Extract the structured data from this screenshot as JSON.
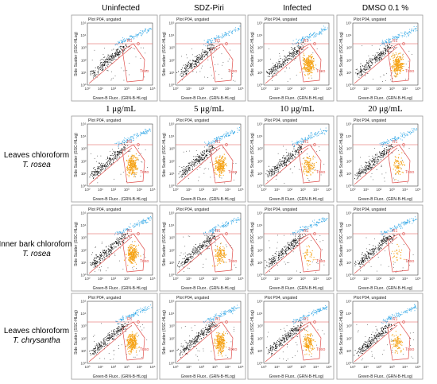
{
  "top_headers": [
    "Uninfected",
    "SDZ-Piri",
    "Infected",
    "DMSO 0.1 %"
  ],
  "conc_headers": [
    "1 μg/mL",
    "5 μg/mL",
    "10 μg/mL",
    "20 μg/mL"
  ],
  "row_labels": [
    {
      "extract": "Leaves chloroform",
      "species": "T. rosea"
    },
    {
      "extract": "Inner bark chloroform",
      "species": "T. rosea"
    },
    {
      "extract": "Leaves chloroform",
      "species": "T. chrysantha"
    }
  ],
  "plot_text": {
    "title": "Plot P04, ungated",
    "xlabel": "Green-B Fluor.. (GRN-B-HLog)",
    "ylabel": "Side Scatter (SSC-HLog)",
    "gate_r1": "R1",
    "gate_toxo": "Toxo",
    "ticks": [
      "10⁰",
      "10¹",
      "10²",
      "10³",
      "10⁴",
      "10⁵"
    ]
  },
  "colors": {
    "cells": "#111111",
    "r1_events": "#2fa6e6",
    "toxo_events": "#f5a316",
    "gate_line": "#e0504d"
  },
  "chart_data": [
    {
      "type": "scatter",
      "panel": "Uninfected",
      "axes": "log-log",
      "xlim": [
        1,
        100000
      ],
      "ylim": [
        1,
        100000
      ],
      "gates": [
        "R1",
        "Toxo"
      ],
      "toxo_density": 0.0
    },
    {
      "type": "scatter",
      "panel": "SDZ-Piri",
      "axes": "log-log",
      "xlim": [
        1,
        100000
      ],
      "ylim": [
        1,
        100000
      ],
      "gates": [
        "R1",
        "Toxo"
      ],
      "toxo_density": 0.0
    },
    {
      "type": "scatter",
      "panel": "Infected",
      "axes": "log-log",
      "xlim": [
        1,
        100000
      ],
      "ylim": [
        1,
        100000
      ],
      "gates": [
        "R1",
        "Toxo"
      ],
      "toxo_density": 1.0
    },
    {
      "type": "scatter",
      "panel": "DMSO 0.1 %",
      "axes": "log-log",
      "xlim": [
        1,
        100000
      ],
      "ylim": [
        1,
        100000
      ],
      "gates": [
        "R1",
        "Toxo"
      ],
      "toxo_density": 1.0
    },
    {
      "type": "scatter",
      "panel": "Leaves chloroform T. rosea, 1 μg/mL",
      "axes": "log-log",
      "xlim": [
        1,
        100000
      ],
      "ylim": [
        1,
        100000
      ],
      "gates": [
        "R1",
        "Toxo"
      ],
      "toxo_density": 0.85
    },
    {
      "type": "scatter",
      "panel": "Leaves chloroform T. rosea, 5 μg/mL",
      "axes": "log-log",
      "xlim": [
        1,
        100000
      ],
      "ylim": [
        1,
        100000
      ],
      "gates": [
        "R1",
        "Toxo"
      ],
      "toxo_density": 0.8
    },
    {
      "type": "scatter",
      "panel": "Leaves chloroform T. rosea, 10 μg/mL",
      "axes": "log-log",
      "xlim": [
        1,
        100000
      ],
      "ylim": [
        1,
        100000
      ],
      "gates": [
        "R1",
        "Toxo"
      ],
      "toxo_density": 0.45
    },
    {
      "type": "scatter",
      "panel": "Leaves chloroform T. rosea, 20 μg/mL",
      "axes": "log-log",
      "xlim": [
        1,
        100000
      ],
      "ylim": [
        1,
        100000
      ],
      "gates": [
        "R1",
        "Toxo"
      ],
      "toxo_density": 0.3
    },
    {
      "type": "scatter",
      "panel": "Inner bark chloroform T. rosea, 1 μg/mL",
      "axes": "log-log",
      "xlim": [
        1,
        100000
      ],
      "ylim": [
        1,
        100000
      ],
      "gates": [
        "R1",
        "Toxo"
      ],
      "toxo_density": 0.9
    },
    {
      "type": "scatter",
      "panel": "Inner bark chloroform T. rosea, 5 μg/mL",
      "axes": "log-log",
      "xlim": [
        1,
        100000
      ],
      "ylim": [
        1,
        100000
      ],
      "gates": [
        "R1",
        "Toxo"
      ],
      "toxo_density": 0.5
    },
    {
      "type": "scatter",
      "panel": "Inner bark chloroform T. rosea, 10 μg/mL",
      "axes": "log-log",
      "xlim": [
        1,
        100000
      ],
      "ylim": [
        1,
        100000
      ],
      "gates": [
        "R1",
        "Toxo"
      ],
      "toxo_density": 0.15
    },
    {
      "type": "scatter",
      "panel": "Inner bark chloroform T. rosea, 20 μg/mL",
      "axes": "log-log",
      "xlim": [
        1,
        100000
      ],
      "ylim": [
        1,
        100000
      ],
      "gates": [
        "R1",
        "Toxo"
      ],
      "toxo_density": 0.1
    },
    {
      "type": "scatter",
      "panel": "Leaves chloroform T. chrysantha, 1 μg/mL",
      "axes": "log-log",
      "xlim": [
        1,
        100000
      ],
      "ylim": [
        1,
        100000
      ],
      "gates": [
        "R1",
        "Toxo"
      ],
      "toxo_density": 0.95
    },
    {
      "type": "scatter",
      "panel": "Leaves chloroform T. chrysantha, 5 μg/mL",
      "axes": "log-log",
      "xlim": [
        1,
        100000
      ],
      "ylim": [
        1,
        100000
      ],
      "gates": [
        "R1",
        "Toxo"
      ],
      "toxo_density": 0.9
    },
    {
      "type": "scatter",
      "panel": "Leaves chloroform T. chrysantha, 10 μg/mL",
      "axes": "log-log",
      "xlim": [
        1,
        100000
      ],
      "ylim": [
        1,
        100000
      ],
      "gates": [
        "R1",
        "Toxo"
      ],
      "toxo_density": 0.6
    },
    {
      "type": "scatter",
      "panel": "Leaves chloroform T. chrysantha, 20 μg/mL",
      "axes": "log-log",
      "xlim": [
        1,
        100000
      ],
      "ylim": [
        1,
        100000
      ],
      "gates": [
        "R1",
        "Toxo"
      ],
      "toxo_density": 0.35
    }
  ]
}
